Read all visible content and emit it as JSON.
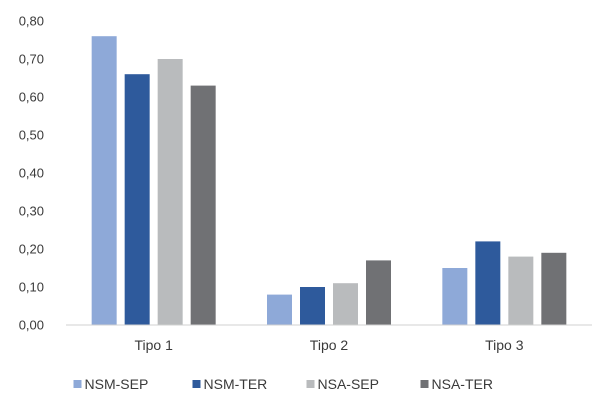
{
  "chart_data": {
    "type": "bar",
    "title": "",
    "xlabel": "",
    "ylabel": "",
    "categories": [
      "Tipo 1",
      "Tipo 2",
      "Tipo 3"
    ],
    "series": [
      {
        "name": "NSM-SEP",
        "color": "#8ea9d8",
        "values": [
          0.76,
          0.08,
          0.15
        ]
      },
      {
        "name": "NSM-TER",
        "color": "#2e5a9c",
        "values": [
          0.66,
          0.1,
          0.22
        ]
      },
      {
        "name": "NSA-SEP",
        "color": "#b9bbbd",
        "values": [
          0.7,
          0.11,
          0.18
        ]
      },
      {
        "name": "NSA-TER",
        "color": "#707174",
        "values": [
          0.63,
          0.17,
          0.19
        ]
      }
    ],
    "ylim": [
      0,
      0.8
    ],
    "yticks": [
      "0,00",
      "0,10",
      "0,20",
      "0,30",
      "0,40",
      "0,50",
      "0,60",
      "0,70",
      "0,80"
    ],
    "grid": false,
    "legend_position": "bottom"
  }
}
